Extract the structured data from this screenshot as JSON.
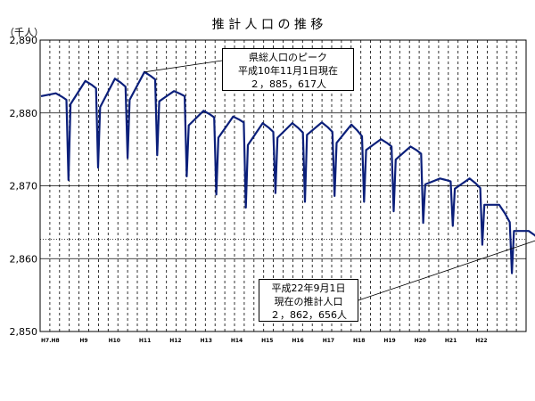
{
  "chart_data": {
    "type": "line",
    "title": "推 計 人 口 の 推 移",
    "unit_label": "（千人）",
    "ylim": [
      2850,
      2890
    ],
    "y_ticks": [
      "2,850",
      "2,860",
      "2,870",
      "2,880",
      "2,890"
    ],
    "x_ticks": [
      "H7.H8",
      "H9",
      "H10",
      "H11",
      "H12",
      "H13",
      "H14",
      "H15",
      "H16",
      "H17",
      "H18",
      "H19",
      "H20",
      "H21",
      "H22"
    ],
    "grid": true,
    "reference_line": 2862.656,
    "series": [
      {
        "color": "#0b1f7a",
        "segments": [
          {
            "from": "H7.H8",
            "start": 2882.3,
            "peak": 2882.7,
            "end": 2881.8,
            "dip": 2870.8
          },
          {
            "from": "H8",
            "start": 2881.2,
            "peak": 2884.4,
            "end": 2883.4,
            "dip": 2872.5
          },
          {
            "from": "H9",
            "start": 2880.8,
            "peak": 2884.7,
            "end": 2883.6,
            "dip": 2873.8
          },
          {
            "from": "H10",
            "start": 2881.8,
            "peak": 2885.617,
            "end": 2884.6,
            "dip": 2874.2
          },
          {
            "from": "H11",
            "start": 2881.6,
            "peak": 2883.0,
            "end": 2882.3,
            "dip": 2871.3
          },
          {
            "from": "H12",
            "start": 2878.3,
            "peak": 2880.3,
            "end": 2879.4,
            "dip": 2868.8
          },
          {
            "from": "H13",
            "start": 2876.6,
            "peak": 2879.5,
            "end": 2878.7,
            "dip": 2867.0
          },
          {
            "from": "H14",
            "start": 2875.6,
            "peak": 2878.6,
            "end": 2877.4,
            "dip": 2869.0
          },
          {
            "from": "H15",
            "start": 2876.6,
            "peak": 2878.6,
            "end": 2877.3,
            "dip": 2867.8
          },
          {
            "from": "H16",
            "start": 2877.0,
            "peak": 2878.7,
            "end": 2877.4,
            "dip": 2868.6
          },
          {
            "from": "H17",
            "start": 2875.9,
            "peak": 2878.4,
            "end": 2876.8,
            "dip": 2867.8
          },
          {
            "from": "H18",
            "start": 2874.9,
            "peak": 2876.4,
            "end": 2875.4,
            "dip": 2866.5
          },
          {
            "from": "H19",
            "start": 2873.6,
            "peak": 2875.4,
            "end": 2874.4,
            "dip": 2864.9
          },
          {
            "from": "H20",
            "start": 2870.2,
            "peak": 2871.0,
            "end": 2870.6,
            "dip": 2864.5
          },
          {
            "from": "H20b",
            "start": 2869.6,
            "peak": 2871.0,
            "end": 2869.7,
            "dip": 2861.9
          },
          {
            "from": "H21",
            "start": 2867.4,
            "peak": 2867.4,
            "end": 2865.0,
            "dip": 2858.0
          },
          {
            "from": "H22",
            "start": 2863.8,
            "peak": 2863.8,
            "end": 2862.656,
            "dip": null
          }
        ]
      }
    ],
    "annotations": [
      {
        "lines": [
          "県総人口のピーク",
          "平成10年11月1日現在",
          "２，885，617人"
        ]
      },
      {
        "lines": [
          "平成22年9月1日",
          "現在の推計人口",
          "２，862，656人"
        ]
      }
    ]
  }
}
